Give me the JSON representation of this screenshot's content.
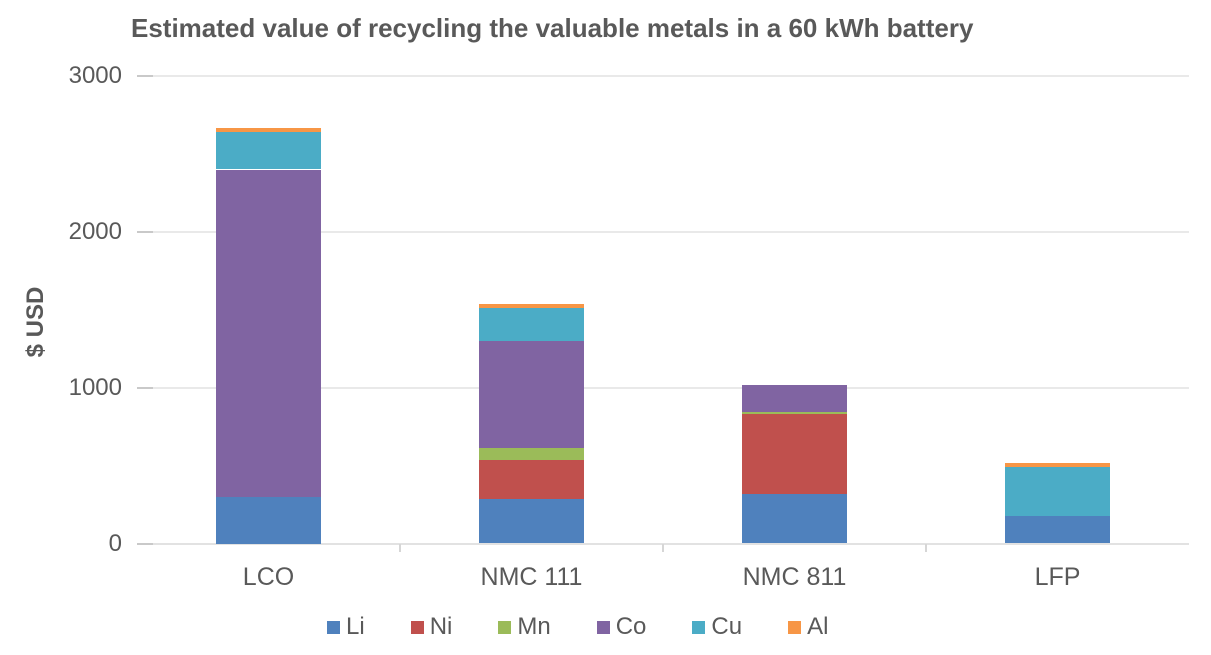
{
  "chart_data": {
    "type": "bar",
    "stacked": true,
    "title": "Estimated value of recycling the valuable metals in a 60 kWh battery",
    "xlabel": "",
    "ylabel": "$ USD",
    "categories": [
      "LCO",
      "NMC 111",
      "NMC 811",
      "LFP"
    ],
    "series": [
      {
        "name": "Li",
        "color": "#4F81BD",
        "values": [
          300,
          285,
          320,
          175
        ]
      },
      {
        "name": "Ni",
        "color": "#C0504D",
        "values": [
          0,
          250,
          510,
          0
        ]
      },
      {
        "name": "Mn",
        "color": "#9BBB59",
        "values": [
          0,
          75,
          15,
          0
        ]
      },
      {
        "name": "Co",
        "color": "#8064A2",
        "values": [
          2100,
          690,
          170,
          0
        ]
      },
      {
        "name": "Cu",
        "color": "#4BACC6",
        "values": [
          240,
          210,
          0,
          315
        ]
      },
      {
        "name": "Al",
        "color": "#F79646",
        "values": [
          25,
          25,
          0,
          25
        ]
      }
    ],
    "yticks": [
      0,
      1000,
      2000,
      3000
    ],
    "ylim": [
      0,
      3000
    ],
    "grid": "horizontal",
    "legend_position": "bottom",
    "text_color": "#595959",
    "gridline_color": "#e9e9e9"
  }
}
